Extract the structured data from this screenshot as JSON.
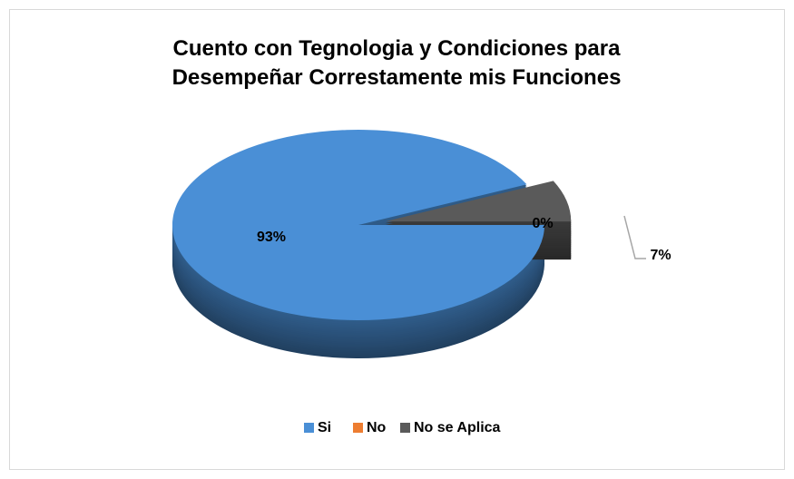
{
  "chart_data": {
    "type": "pie3d",
    "title": "Cuento con Tegnologia y Condiciones para Desempeñar Correstamente mis Funciones",
    "categories": [
      "Si",
      "No",
      "No se Aplica"
    ],
    "values": [
      93,
      0,
      7
    ],
    "value_labels": [
      "93%",
      "0%",
      "7%"
    ],
    "colors": [
      "#4a8fd6",
      "#ed7d31",
      "#5a5a5a"
    ],
    "legend": "bottom"
  }
}
